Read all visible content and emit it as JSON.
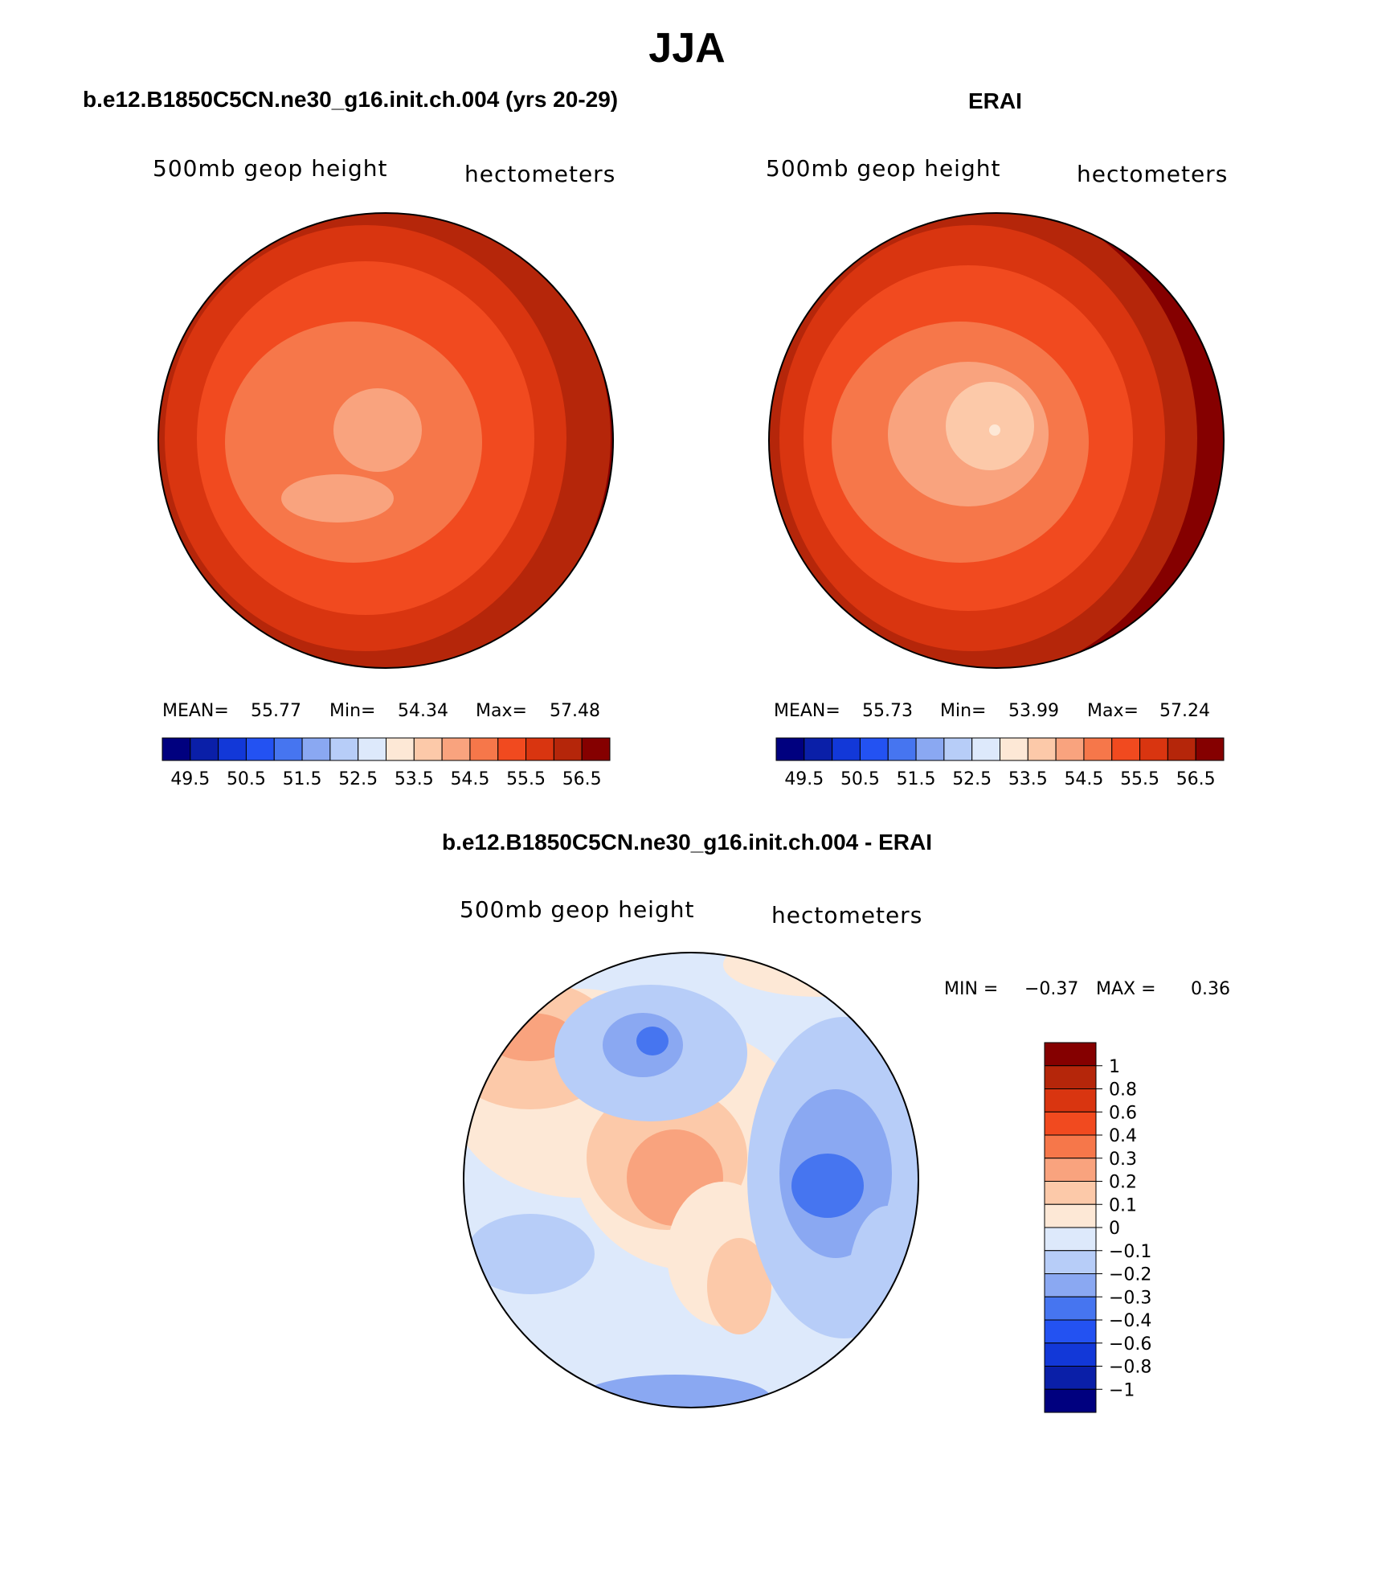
{
  "figure": {
    "title": "JJA"
  },
  "panels": {
    "left": {
      "title": "b.e12.B1850C5CN.ne30_g16.init.ch.004 (yrs 20-29)",
      "variable": "500mb geop height",
      "units": "hectometers",
      "mean_label": "MEAN=",
      "mean_value": "55.77",
      "min_label": "Min=",
      "min_value": "54.34",
      "max_label": "Max=",
      "max_value": "57.48"
    },
    "right": {
      "title": "ERAI",
      "variable": "500mb geop height",
      "units": "hectometers",
      "mean_label": "MEAN=",
      "mean_value": "55.73",
      "min_label": "Min=",
      "min_value": "53.99",
      "max_label": "Max=",
      "max_value": "57.24"
    },
    "diff": {
      "title": "b.e12.B1850C5CN.ne30_g16.init.ch.004 - ERAI",
      "variable": "500mb geop height",
      "units": "hectometers",
      "min_label": "MIN =",
      "min_value": "−0.37",
      "max_label": "MAX =",
      "max_value": "0.36"
    }
  },
  "chart_data": [
    {
      "type": "heatmap",
      "projection": "north-polar-stereographic",
      "title": "b.e12.B1850C5CN.ne30_g16.init.ch.004 (yrs 20-29)",
      "field": "500mb geop height",
      "units": "hectometers",
      "stats": {
        "mean": 55.77,
        "min": 54.34,
        "max": 57.48
      },
      "contour_levels": [
        49.5,
        50.5,
        51.5,
        52.5,
        53.5,
        54.5,
        55.5,
        56.5
      ],
      "colorbar_labels": [
        "49.5",
        "50.5",
        "51.5",
        "52.5",
        "53.5",
        "54.5",
        "55.5",
        "56.5"
      ],
      "colors": [
        "#00007f",
        "#0a1fa8",
        "#1238d8",
        "#2352f2",
        "#4675f0",
        "#8aa8f2",
        "#b7cdf8",
        "#dde9fb",
        "#fde8d6",
        "#fcc9a9",
        "#f9a37e",
        "#f6774a",
        "#f14a1f",
        "#d93510",
        "#b5260a",
        "#850000"
      ]
    },
    {
      "type": "heatmap",
      "projection": "north-polar-stereographic",
      "title": "ERAI",
      "field": "500mb geop height",
      "units": "hectometers",
      "stats": {
        "mean": 55.73,
        "min": 53.99,
        "max": 57.24
      },
      "contour_levels": [
        49.5,
        50.5,
        51.5,
        52.5,
        53.5,
        54.5,
        55.5,
        56.5
      ],
      "colorbar_labels": [
        "49.5",
        "50.5",
        "51.5",
        "52.5",
        "53.5",
        "54.5",
        "55.5",
        "56.5"
      ],
      "colors": [
        "#00007f",
        "#0a1fa8",
        "#1238d8",
        "#2352f2",
        "#4675f0",
        "#8aa8f2",
        "#b7cdf8",
        "#dde9fb",
        "#fde8d6",
        "#fcc9a9",
        "#f9a37e",
        "#f6774a",
        "#f14a1f",
        "#d93510",
        "#b5260a",
        "#850000"
      ]
    },
    {
      "type": "heatmap",
      "projection": "north-polar-stereographic",
      "title": "b.e12.B1850C5CN.ne30_g16.init.ch.004 - ERAI",
      "field": "500mb geop height",
      "units": "hectometers",
      "stats": {
        "min": -0.37,
        "max": 0.36
      },
      "contour_levels": [
        1,
        0.8,
        0.6,
        0.4,
        0.3,
        0.2,
        0.1,
        0,
        -0.1,
        -0.2,
        -0.3,
        -0.4,
        -0.6,
        -0.8,
        -1
      ],
      "colorbar_labels": [
        "1",
        "0.8",
        "0.6",
        "0.4",
        "0.3",
        "0.2",
        "0.1",
        "0",
        "−0.1",
        "−0.2",
        "−0.3",
        "−0.4",
        "−0.6",
        "−0.8",
        "−1"
      ],
      "colors": [
        "#850000",
        "#b5260a",
        "#d93510",
        "#f14a1f",
        "#f6774a",
        "#f9a37e",
        "#fcc9a9",
        "#fde8d6",
        "#dde9fb",
        "#b7cdf8",
        "#8aa8f2",
        "#4675f0",
        "#2352f2",
        "#1238d8",
        "#0a1fa8",
        "#00007f"
      ]
    }
  ]
}
